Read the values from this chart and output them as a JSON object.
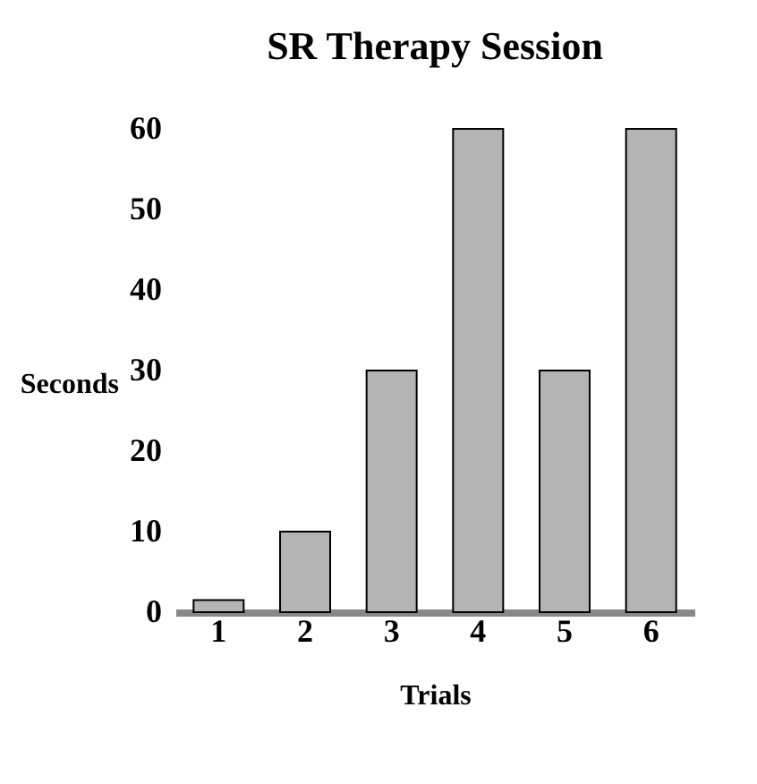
{
  "chart_data": {
    "type": "bar",
    "title": "SR Therapy Session",
    "xlabel": "Trials",
    "ylabel": "Seconds",
    "categories": [
      "1",
      "2",
      "3",
      "4",
      "5",
      "6"
    ],
    "values": [
      1.5,
      10,
      30,
      60,
      30,
      60
    ],
    "color": "#b4b4b4",
    "ylim": [
      0,
      60
    ],
    "yticks": [
      0,
      10,
      20,
      30,
      40,
      50,
      60
    ],
    "grid": false
  }
}
